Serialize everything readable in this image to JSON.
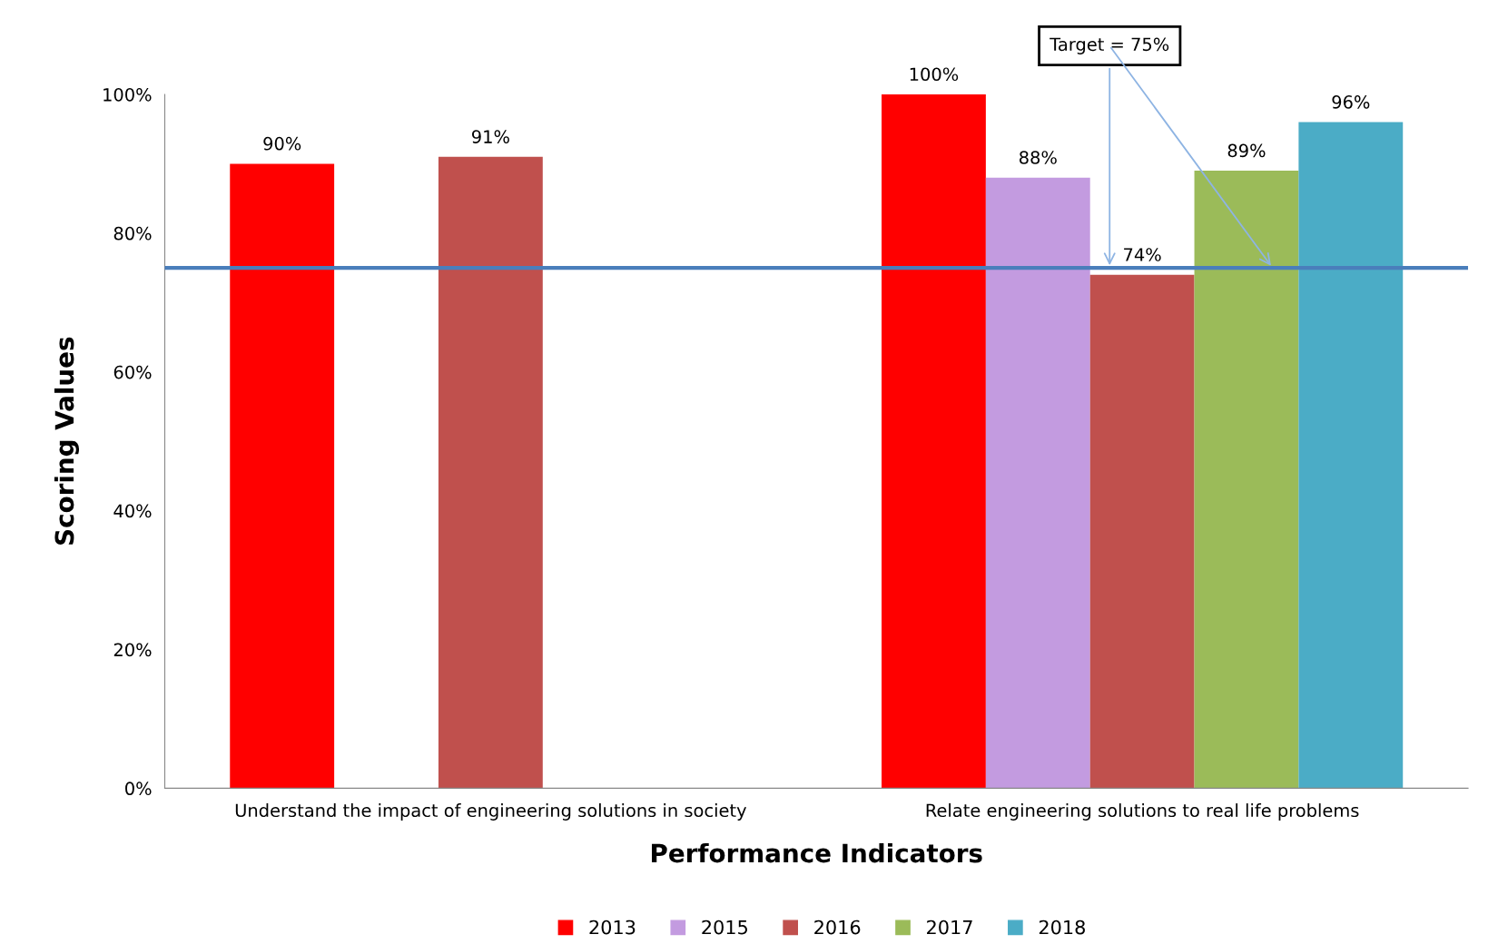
{
  "chart_data": {
    "type": "bar",
    "xlabel": "Performance Indicators",
    "ylabel": "Scoring Values",
    "categories": [
      "Understand the impact of engineering solutions in society",
      "Relate engineering solutions to real life problems"
    ],
    "series": [
      {
        "name": "2013",
        "color": "#ff0000",
        "values": [
          90,
          100
        ],
        "value_labels": [
          "90%",
          "100%"
        ]
      },
      {
        "name": "2015",
        "color": "#c39be0",
        "values": [
          null,
          88
        ],
        "value_labels": [
          null,
          "88%"
        ]
      },
      {
        "name": "2016",
        "color": "#c0504d",
        "values": [
          91,
          74
        ],
        "value_labels": [
          "91%",
          "74%"
        ]
      },
      {
        "name": "2017",
        "color": "#9bbb59",
        "values": [
          null,
          89
        ],
        "value_labels": [
          null,
          "89%"
        ]
      },
      {
        "name": "2018",
        "color": "#4bacc6",
        "values": [
          null,
          96
        ],
        "value_labels": [
          null,
          "96%"
        ]
      }
    ],
    "ylim": [
      0,
      100
    ],
    "yticks": [
      {
        "value": 0,
        "label": "0%"
      },
      {
        "value": 20,
        "label": "20%"
      },
      {
        "value": 40,
        "label": "40%"
      },
      {
        "value": 60,
        "label": "60%"
      },
      {
        "value": 80,
        "label": "80%"
      },
      {
        "value": 100,
        "label": "100%"
      }
    ],
    "ref_lines": [
      {
        "axis": "y",
        "value": 75,
        "label": "Target = 75%",
        "color": "#4a7ebb"
      }
    ],
    "grid": false,
    "legend": "bottom"
  }
}
